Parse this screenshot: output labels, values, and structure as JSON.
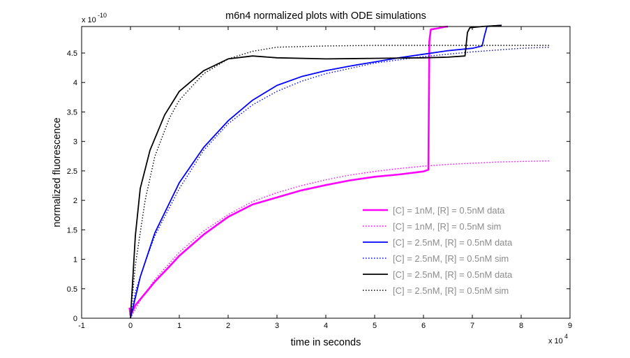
{
  "chart_data": {
    "type": "line",
    "title": "m6n4 normalized plots with ODE simulations",
    "xlabel": "time in seconds",
    "ylabel": "normalized fluorescence",
    "x_multiplier": "x 10",
    "x_multiplier_exp": "4",
    "y_multiplier": "x 10",
    "y_multiplier_exp": "-10",
    "xlim": [
      -1,
      9
    ],
    "ylim": [
      0,
      4.95
    ],
    "xticks": [
      "-1",
      "0",
      "1",
      "2",
      "3",
      "4",
      "5",
      "6",
      "7",
      "8",
      "9"
    ],
    "yticks": [
      "0",
      "0.5",
      "1",
      "1.5",
      "2",
      "2.5",
      "3",
      "3.5",
      "4",
      "4.5"
    ],
    "legend_position": "bottom-right",
    "series": [
      {
        "name": "[C] = 1nM, [R] = 0.5nM data",
        "color": "#ff00ff",
        "style": "solid",
        "x": [
          -0.02,
          0.0,
          0.1,
          0.3,
          0.5,
          0.8,
          1.0,
          1.5,
          2.0,
          2.5,
          3.0,
          3.5,
          4.0,
          4.5,
          5.0,
          5.5,
          6.0,
          6.1,
          6.12,
          6.15,
          6.3,
          6.4,
          6.5
        ],
        "y": [
          0.18,
          0.05,
          0.22,
          0.42,
          0.62,
          0.88,
          1.06,
          1.42,
          1.72,
          1.93,
          2.05,
          2.17,
          2.26,
          2.34,
          2.4,
          2.44,
          2.49,
          2.52,
          4.7,
          4.9,
          4.92,
          4.94,
          4.95
        ]
      },
      {
        "name": "[C] = 1nM, [R] = 0.5nM sim",
        "color": "#ff00ff",
        "style": "dotted",
        "x": [
          0.0,
          0.2,
          0.5,
          1.0,
          1.5,
          2.0,
          2.5,
          3.0,
          3.5,
          4.0,
          4.5,
          5.0,
          5.5,
          6.0,
          6.5,
          7.0,
          7.5,
          8.0,
          8.6
        ],
        "y": [
          0.0,
          0.3,
          0.66,
          1.12,
          1.48,
          1.76,
          1.98,
          2.13,
          2.25,
          2.35,
          2.43,
          2.49,
          2.54,
          2.58,
          2.61,
          2.63,
          2.65,
          2.66,
          2.67
        ]
      },
      {
        "name": "[C] = 2.5nM, [R] = 0.5nM data",
        "color": "#0000ff",
        "style": "solid",
        "x": [
          0.0,
          0.2,
          0.5,
          1.0,
          1.5,
          2.0,
          2.5,
          3.0,
          3.5,
          4.0,
          4.5,
          5.0,
          5.5,
          6.0,
          6.5,
          7.0,
          7.2,
          7.25,
          7.3,
          7.6
        ],
        "y": [
          0.0,
          0.7,
          1.45,
          2.3,
          2.9,
          3.35,
          3.7,
          3.95,
          4.1,
          4.2,
          4.28,
          4.35,
          4.42,
          4.48,
          4.54,
          4.58,
          4.62,
          4.8,
          4.95,
          4.97
        ]
      },
      {
        "name": "[C] = 2.5nM, [R] = 0.5nM sim",
        "color": "#0000ff",
        "style": "dotted",
        "x": [
          0.0,
          0.1,
          0.3,
          0.5,
          1.0,
          1.5,
          2.0,
          2.5,
          3.0,
          3.5,
          4.0,
          5.0,
          6.0,
          7.0,
          8.0,
          8.6
        ],
        "y": [
          0.0,
          0.45,
          0.95,
          1.4,
          2.2,
          2.85,
          3.3,
          3.62,
          3.85,
          4.02,
          4.15,
          4.33,
          4.44,
          4.52,
          4.58,
          4.6
        ]
      },
      {
        "name": "[C] = 2.5nM, [R] = 0.5nM data",
        "color": "#000000",
        "style": "solid",
        "x": [
          0.0,
          0.1,
          0.2,
          0.4,
          0.7,
          1.0,
          1.5,
          2.0,
          2.5,
          3.0,
          4.0,
          5.0,
          6.0,
          6.5,
          6.85,
          6.9,
          6.95,
          7.2,
          7.6
        ],
        "y": [
          0.0,
          1.4,
          2.2,
          2.85,
          3.45,
          3.85,
          4.2,
          4.4,
          4.45,
          4.42,
          4.4,
          4.41,
          4.42,
          4.43,
          4.45,
          4.85,
          4.93,
          4.95,
          4.97
        ]
      },
      {
        "name": "[C] = 2.5nM, [R] = 0.5nM sim",
        "color": "#000000",
        "style": "dotted",
        "x": [
          0.0,
          0.1,
          0.3,
          0.5,
          0.8,
          1.0,
          1.5,
          2.0,
          2.5,
          3.0,
          4.0,
          5.0,
          6.0,
          7.0,
          8.0,
          8.6
        ],
        "y": [
          0.0,
          0.9,
          2.0,
          2.75,
          3.4,
          3.7,
          4.15,
          4.4,
          4.53,
          4.6,
          4.62,
          4.63,
          4.63,
          4.63,
          4.63,
          4.63
        ]
      }
    ]
  }
}
